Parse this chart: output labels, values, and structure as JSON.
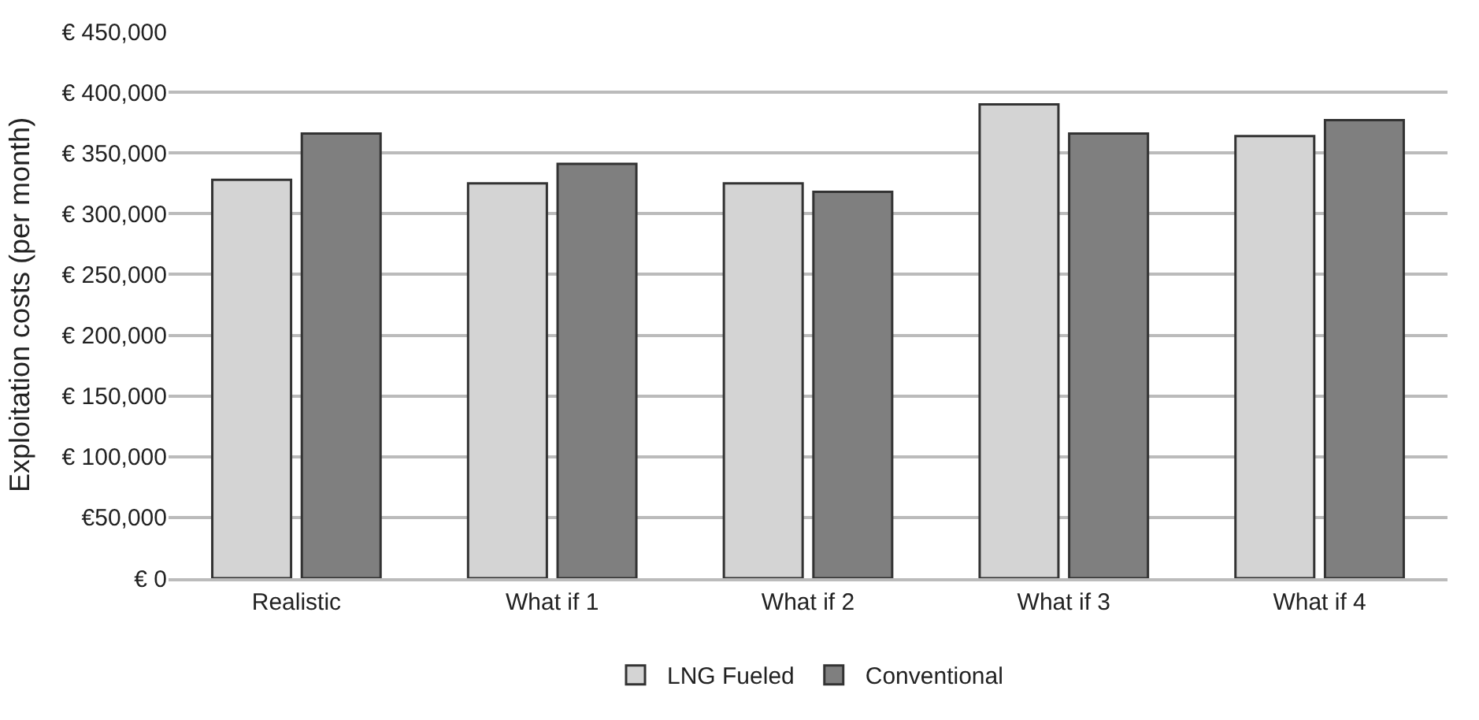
{
  "chart_data": {
    "type": "bar",
    "ylabel": "Exploitation costs (per month)",
    "categories": [
      "Realistic",
      "What if 1",
      "What if 2",
      "What if 3",
      "What if 4"
    ],
    "series": [
      {
        "name": "LNG Fueled",
        "color": "#d4d4d4",
        "values": [
          328000,
          325000,
          325000,
          390000,
          364000
        ]
      },
      {
        "name": "Conventional",
        "color": "#7f7f7f",
        "values": [
          366000,
          341000,
          318000,
          366000,
          377000
        ]
      }
    ],
    "ylim": [
      0,
      450000
    ],
    "yticks": [
      {
        "value": 0,
        "label": "€ 0"
      },
      {
        "value": 50000,
        "label": "€50,000"
      },
      {
        "value": 100000,
        "label": "€ 100,000"
      },
      {
        "value": 150000,
        "label": "€ 150,000"
      },
      {
        "value": 200000,
        "label": "€ 200,000"
      },
      {
        "value": 250000,
        "label": "€ 250,000"
      },
      {
        "value": 300000,
        "label": "€ 300,000"
      },
      {
        "value": 350000,
        "label": "€ 350,000"
      },
      {
        "value": 400000,
        "label": "€ 400,000"
      },
      {
        "value": 450000,
        "label": "€ 450,000"
      }
    ],
    "grid": "y",
    "legend": "bottom"
  }
}
